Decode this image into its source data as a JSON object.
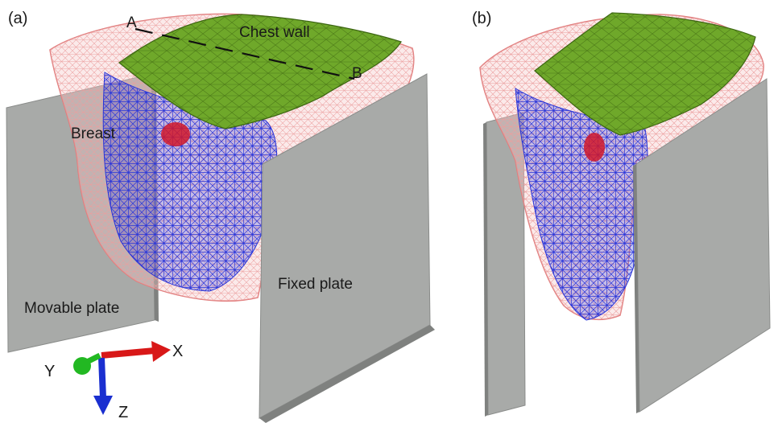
{
  "panels": [
    {
      "label": "(a)",
      "annotations": {
        "point_a": "A",
        "point_b": "B",
        "chest_wall": "Chest wall",
        "breast": "Breast",
        "movable_plate": "Movable plate",
        "fixed_plate": "Fixed plate"
      },
      "axes": {
        "x": "X",
        "y": "Y",
        "z": "Z"
      }
    },
    {
      "label": "(b)"
    }
  ],
  "colors": {
    "skin_mesh": "#e88a8a",
    "glandular_mesh": "#2430d8",
    "chest_wall": "#6fa82a",
    "tumor": "#d0182a",
    "plate": "#a8aaa8",
    "axis_x": "#d81818",
    "axis_y": "#22b822",
    "axis_z": "#1a2fd0"
  }
}
